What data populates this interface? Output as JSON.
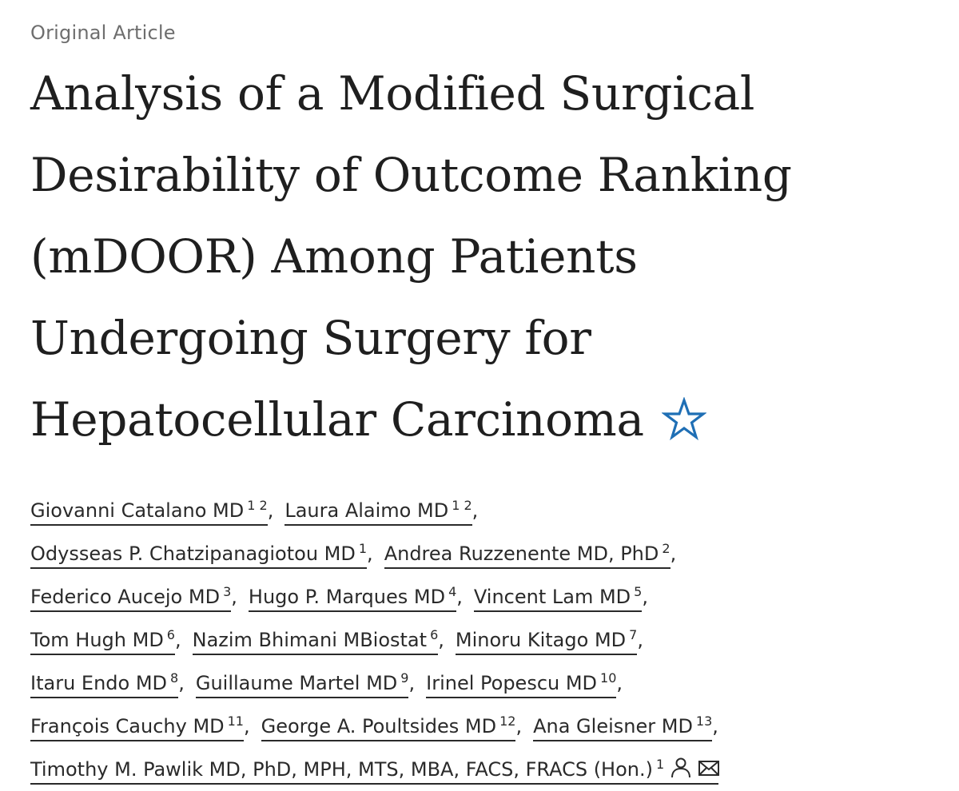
{
  "article_type": "Original Article",
  "title_lines": [
    "Analysis of a Modified Surgical",
    "Desirability of Outcome Ranking",
    "(mDOOR) Among Patients",
    "Undergoing Surgery for",
    "Hepatocellular Carcinoma"
  ],
  "star_icon_color": "#1f6fb5",
  "authors": [
    {
      "name": "Giovanni Catalano MD",
      "aff": "1 2"
    },
    {
      "name": "Laura Alaimo MD",
      "aff": "1 2"
    },
    {
      "name": "Odysseas P. Chatzipanagiotou MD",
      "aff": "1"
    },
    {
      "name": "Andrea Ruzzenente MD, PhD",
      "aff": "2"
    },
    {
      "name": "Federico Aucejo MD",
      "aff": "3"
    },
    {
      "name": "Hugo P. Marques MD",
      "aff": "4"
    },
    {
      "name": "Vincent Lam MD",
      "aff": "5"
    },
    {
      "name": "Tom Hugh MD",
      "aff": "6"
    },
    {
      "name": "Nazim Bhimani MBiostat",
      "aff": "6"
    },
    {
      "name": "Minoru Kitago MD",
      "aff": "7"
    },
    {
      "name": "Itaru Endo MD",
      "aff": "8"
    },
    {
      "name": "Guillaume Martel MD",
      "aff": "9"
    },
    {
      "name": "Irinel Popescu MD",
      "aff": "10"
    },
    {
      "name": "François Cauchy MD",
      "aff": "11"
    },
    {
      "name": "George A. Poultsides MD",
      "aff": "12"
    },
    {
      "name": "Ana Gleisner MD",
      "aff": "13"
    },
    {
      "name": "Timothy M. Pawlik MD, PhD, MPH, MTS, MBA, FACS, FRACS (Hon.)",
      "aff": "1"
    }
  ],
  "separator": ",",
  "corresponding_icons": [
    "person-icon",
    "envelope-icon"
  ]
}
